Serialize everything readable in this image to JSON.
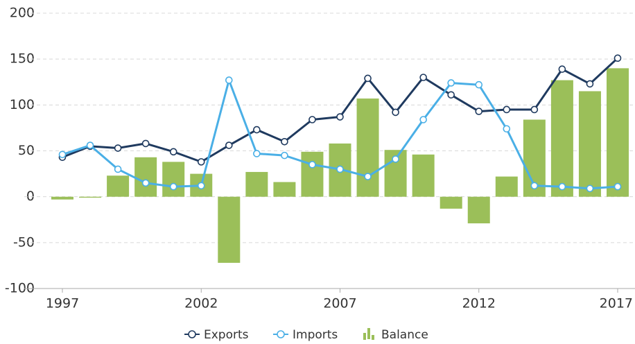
{
  "chart_data": {
    "type": "line_bar",
    "x": [
      1997,
      1998,
      1999,
      2000,
      2001,
      2002,
      2003,
      2004,
      2005,
      2006,
      2007,
      2008,
      2009,
      2010,
      2011,
      2012,
      2013,
      2014,
      2015,
      2016,
      2017
    ],
    "xlim": [
      1997,
      2017
    ],
    "xticks": [
      1997,
      2002,
      2007,
      2012,
      2017
    ],
    "ylim": [
      -100,
      200
    ],
    "yticks": [
      -100,
      -50,
      0,
      50,
      100,
      150,
      200
    ],
    "grid": true,
    "legend": "bottom",
    "series": [
      {
        "name": "Exports",
        "type": "line",
        "color": "#1f3a5f",
        "values": [
          43,
          55,
          53,
          58,
          49,
          38,
          56,
          73,
          60,
          84,
          87,
          129,
          92,
          130,
          111,
          93,
          95,
          95,
          139,
          123,
          151
        ]
      },
      {
        "name": "Imports",
        "type": "line",
        "color": "#4aafe6",
        "values": [
          46,
          56,
          30,
          15,
          11,
          12,
          127,
          47,
          45,
          35,
          30,
          22,
          41,
          84,
          124,
          122,
          74,
          12,
          11,
          9,
          11
        ]
      },
      {
        "name": "Balance",
        "type": "bar",
        "color": "#9bbf59",
        "values": [
          -3,
          -1,
          23,
          43,
          38,
          25,
          -72,
          27,
          16,
          49,
          58,
          107,
          51,
          46,
          -13,
          -29,
          22,
          84,
          127,
          115,
          140
        ]
      }
    ]
  }
}
